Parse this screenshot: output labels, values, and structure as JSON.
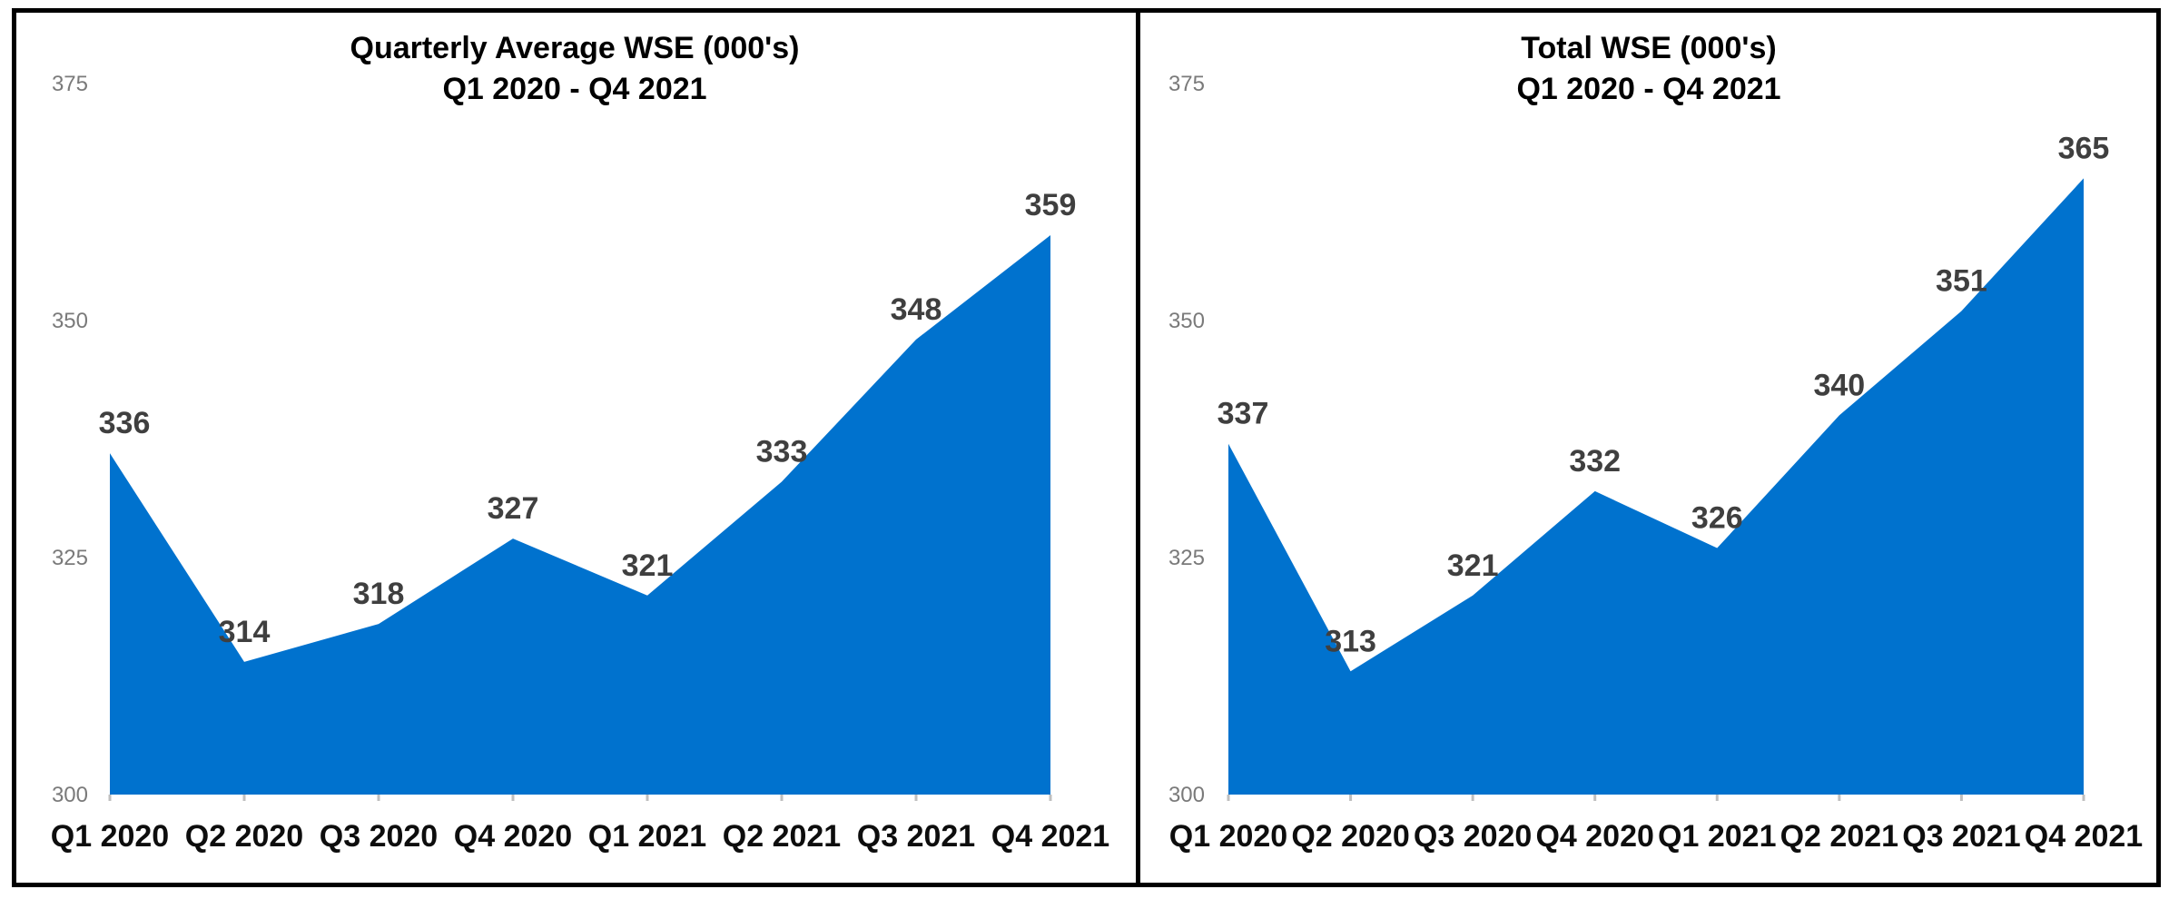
{
  "chart_data": [
    {
      "type": "area",
      "title": "Quarterly Average WSE (000's)",
      "subtitle": "Q1 2020 - Q4 2021",
      "categories": [
        "Q1 2020",
        "Q2 2020",
        "Q3 2020",
        "Q4 2020",
        "Q1 2021",
        "Q2 2021",
        "Q3 2021",
        "Q4 2021"
      ],
      "values": [
        336,
        314,
        318,
        327,
        321,
        333,
        348,
        359
      ],
      "data_labels": [
        336,
        314,
        318,
        327,
        321,
        333,
        348,
        359
      ],
      "xlabel": "",
      "ylabel": "",
      "ylim": [
        300,
        375
      ],
      "y_ticks": [
        300,
        325,
        350,
        375
      ],
      "grid": false,
      "legend": false
    },
    {
      "type": "area",
      "title": "Total WSE (000's)",
      "subtitle": "Q1 2020 - Q4 2021",
      "categories": [
        "Q1 2020",
        "Q2 2020",
        "Q3 2020",
        "Q4 2020",
        "Q1 2021",
        "Q2 2021",
        "Q3 2021",
        "Q4 2021"
      ],
      "values": [
        337,
        313,
        321,
        332,
        326,
        340,
        351,
        365
      ],
      "data_labels": [
        337,
        313,
        321,
        332,
        326,
        340,
        351,
        365
      ],
      "xlabel": "",
      "ylabel": "",
      "ylim": [
        300,
        375
      ],
      "y_ticks": [
        300,
        325,
        350,
        375
      ],
      "grid": false,
      "legend": false
    }
  ],
  "colors": {
    "area_fill": "#0072CE",
    "data_label": "#3F3F3F",
    "y_tick_label": "#7A7A7A",
    "category_label": "#0D0D0D",
    "title": "#000000",
    "baseline_tick": "#BFBFBF",
    "frame": "#000000",
    "background": "#FFFFFF"
  }
}
